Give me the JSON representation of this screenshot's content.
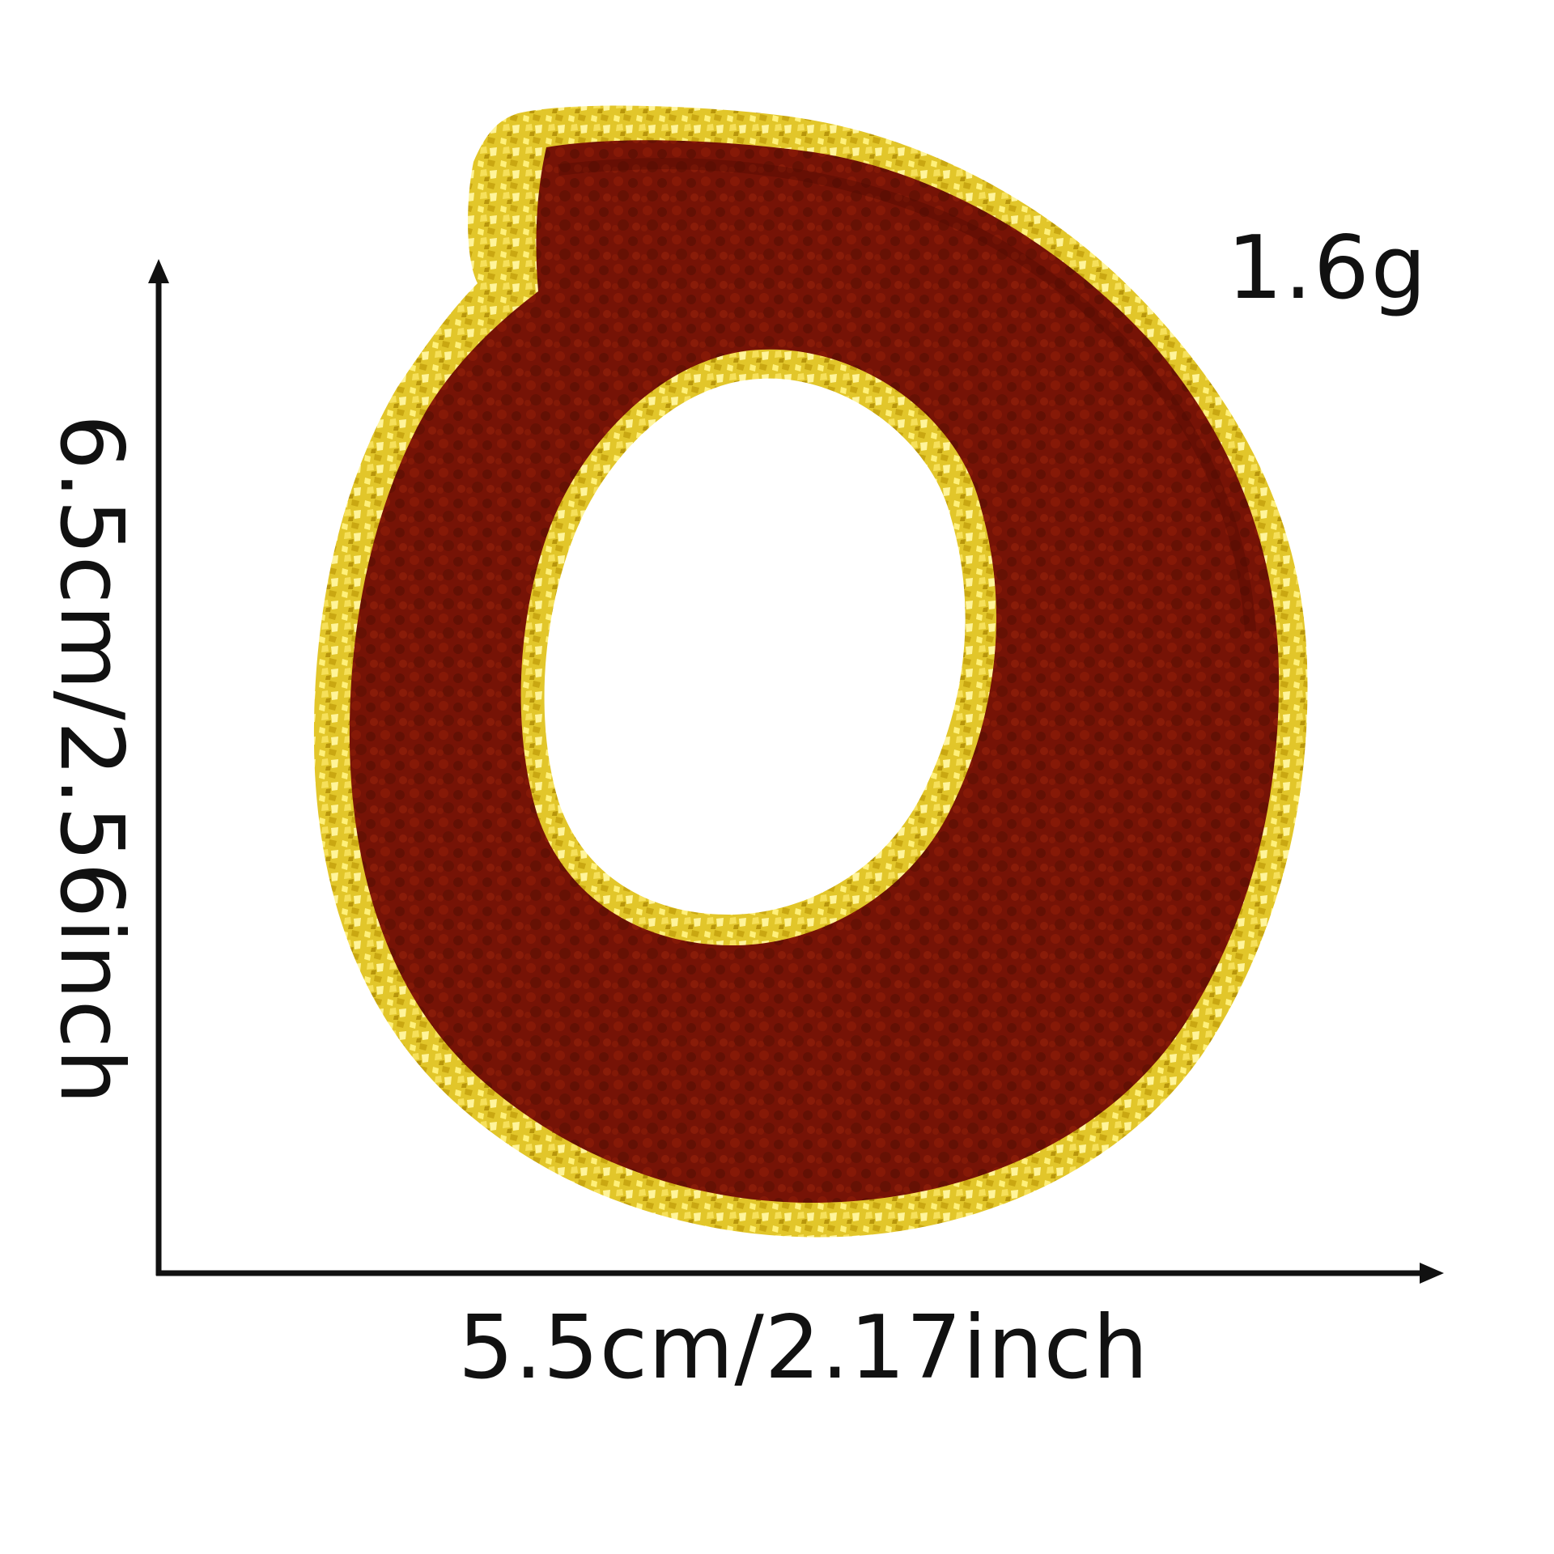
{
  "product_image": {
    "subject": "chenille letter patch",
    "letter": "O",
    "colors": {
      "background": "#ffffff",
      "chenille": "#7a1406",
      "chenille_dark": "#5a0c03",
      "glitter_border": "#e6cf2e",
      "glitter_highlight": "#fff27a",
      "arrow": "#111111"
    }
  },
  "dimensions": {
    "weight": "1.6g",
    "width": "5.5cm/2.17inch",
    "height": "6.5cm/2.56inch"
  },
  "icons": {
    "vertical_arrow": "arrow-up-icon",
    "horizontal_arrow": "arrow-right-icon"
  }
}
